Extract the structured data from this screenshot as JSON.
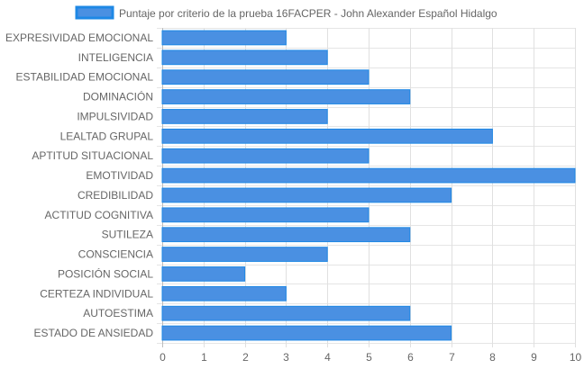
{
  "chart_data": {
    "type": "bar",
    "orientation": "horizontal",
    "categories": [
      "EXPRESIVIDAD EMOCIONAL",
      "INTELIGENCIA",
      "ESTABILIDAD EMOCIONAL",
      "DOMINACIÓN",
      "IMPULSIVIDAD",
      "LEALTAD GRUPAL",
      "APTITUD SITUACIONAL",
      "EMOTIVIDAD",
      "CREDIBILIDAD",
      "ACTITUD COGNITIVA",
      "SUTILEZA",
      "CONSCIENCIA",
      "POSICIÓN SOCIAL",
      "CERTEZA INDIVIDUAL",
      "AUTOESTIMA",
      "ESTADO DE ANSIEDAD"
    ],
    "series": [
      {
        "name": "Puntaje por criterio de la prueba 16FACPER - John Alexander Español Hidalgo",
        "values": [
          3,
          4,
          5,
          6,
          4,
          8,
          5,
          10,
          7,
          5,
          6,
          4,
          2,
          3,
          6,
          7
        ],
        "color": "#4a90e2",
        "border_color": "#1e88e5"
      }
    ],
    "xlim": [
      0,
      10
    ],
    "x_ticks": [
      "0",
      "1",
      "2",
      "3",
      "4",
      "5",
      "6",
      "7",
      "8",
      "9",
      "10"
    ],
    "grid": true,
    "legend_position": "top"
  }
}
